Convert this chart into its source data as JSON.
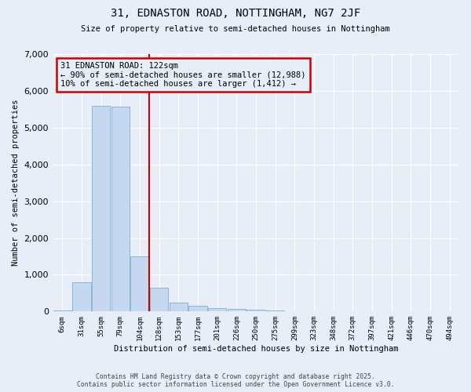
{
  "title": "31, EDNASTON ROAD, NOTTINGHAM, NG7 2JF",
  "subtitle": "Size of property relative to semi-detached houses in Nottingham",
  "xlabel": "Distribution of semi-detached houses by size in Nottingham",
  "ylabel": "Number of semi-detached properties",
  "categories": [
    "6sqm",
    "31sqm",
    "55sqm",
    "79sqm",
    "104sqm",
    "128sqm",
    "153sqm",
    "177sqm",
    "201sqm",
    "226sqm",
    "250sqm",
    "275sqm",
    "299sqm",
    "323sqm",
    "348sqm",
    "372sqm",
    "397sqm",
    "421sqm",
    "446sqm",
    "470sqm",
    "494sqm"
  ],
  "values": [
    30,
    800,
    5600,
    5570,
    1490,
    640,
    250,
    150,
    95,
    65,
    45,
    28,
    15,
    8,
    4,
    3,
    2,
    1,
    1,
    0,
    0
  ],
  "bar_color": "#c5d8ef",
  "bar_edge_color": "#7aafd4",
  "background_color": "#e8eef7",
  "grid_color": "#ffffff",
  "property_line_color": "#cc0000",
  "annotation_box_color": "#cc0000",
  "annotation_title": "31 EDNASTON ROAD: 122sqm",
  "annotation_line1": "← 90% of semi-detached houses are smaller (12,988)",
  "annotation_line2": "10% of semi-detached houses are larger (1,412) →",
  "ylim": [
    0,
    7000
  ],
  "yticks": [
    0,
    1000,
    2000,
    3000,
    4000,
    5000,
    6000,
    7000
  ],
  "property_bar_index": 4.5,
  "footer1": "Contains HM Land Registry data © Crown copyright and database right 2025.",
  "footer2": "Contains public sector information licensed under the Open Government Licence v3.0."
}
